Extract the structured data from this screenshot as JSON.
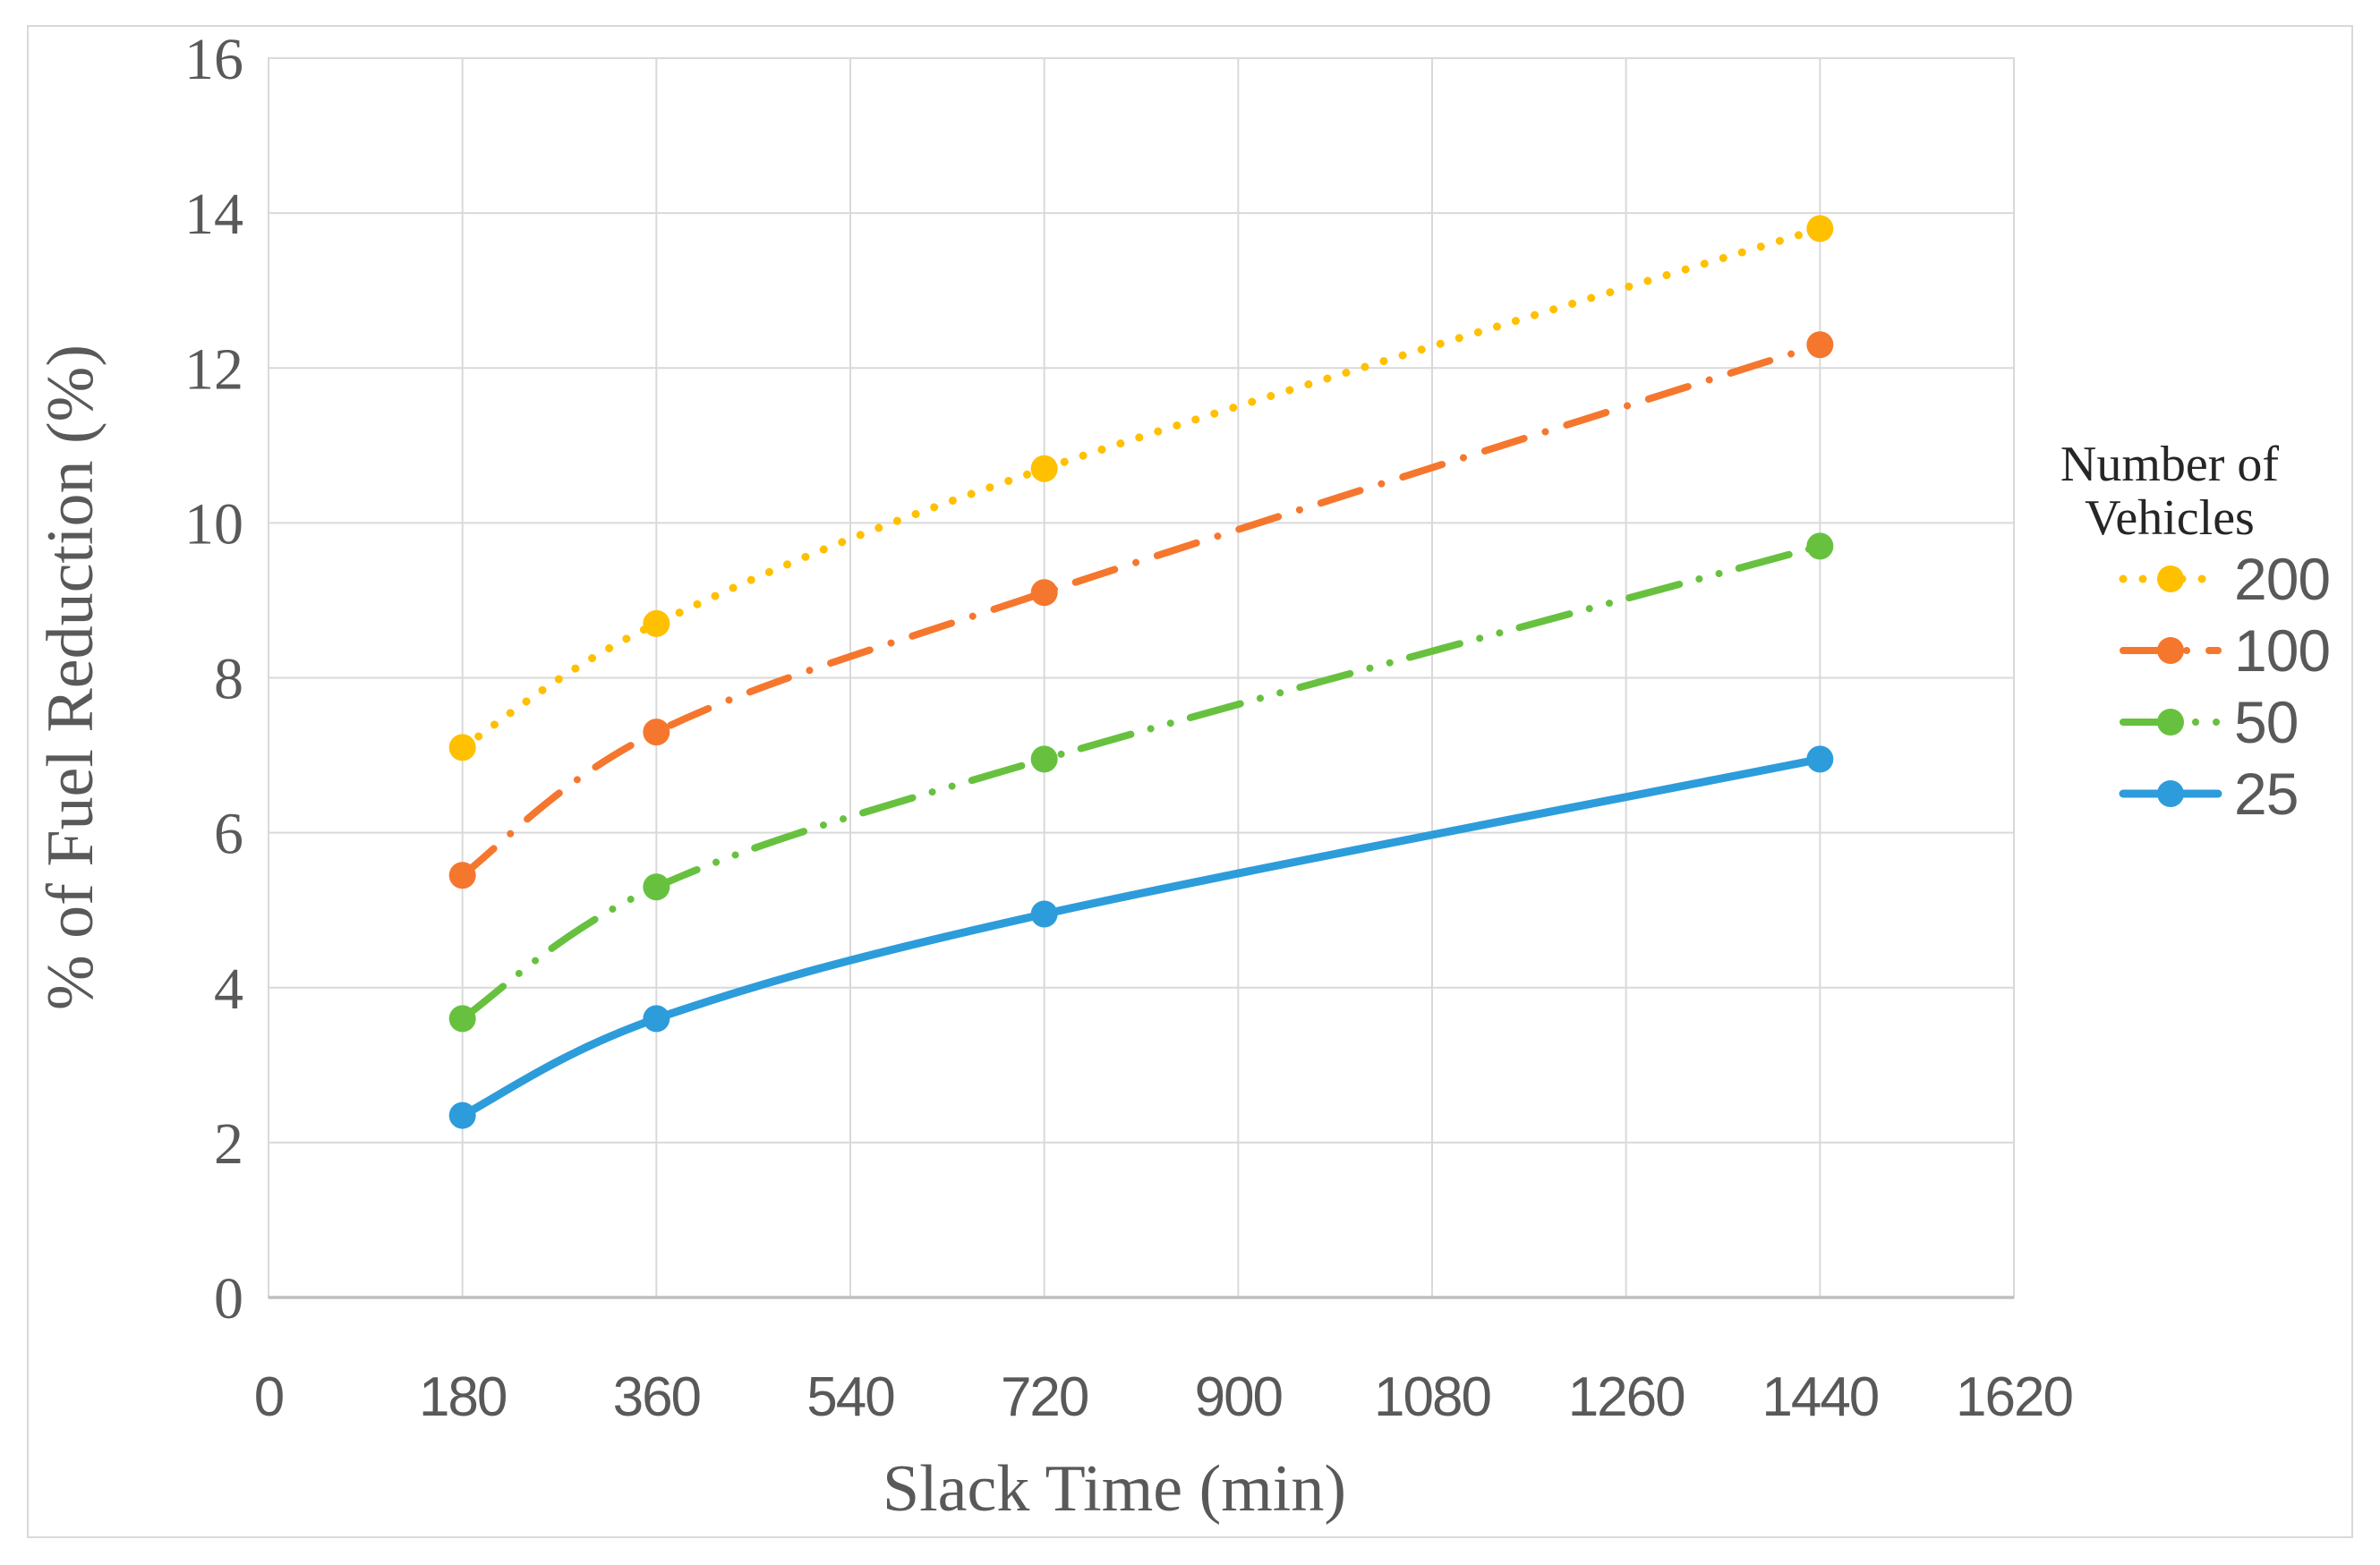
{
  "page": {
    "background": "#FFFFFF",
    "frame_border_color": "#D9D9D9"
  },
  "chart_data": {
    "type": "line",
    "title": "",
    "xlabel": "Slack Time (min)",
    "ylabel": "% of Fuel Reduction (%)",
    "x": [
      180,
      360,
      720,
      1440
    ],
    "xlim": [
      0,
      1620
    ],
    "ylim": [
      0,
      16
    ],
    "x_ticks": [
      0,
      180,
      360,
      540,
      720,
      900,
      1080,
      1260,
      1440,
      1620
    ],
    "y_ticks": [
      0,
      2,
      4,
      6,
      8,
      10,
      12,
      14,
      16
    ],
    "grid": true,
    "smoothed_lines": true,
    "legend": {
      "position": "right",
      "title_lines": [
        "Number of",
        "Vehicles"
      ],
      "entries": [
        "200",
        "100",
        "50",
        "25"
      ]
    },
    "series": [
      {
        "name": "200",
        "color": "#FFC000",
        "line_style": "dotted",
        "marker": "circle",
        "values": [
          7.1,
          8.7,
          10.7,
          13.8
        ]
      },
      {
        "name": "100",
        "color": "#F5772E",
        "line_style": "dash-dot",
        "marker": "circle",
        "values": [
          5.45,
          7.3,
          9.1,
          12.3
        ]
      },
      {
        "name": "50",
        "color": "#67C13F",
        "line_style": "dash-dot-dot",
        "marker": "circle",
        "values": [
          3.6,
          5.3,
          6.95,
          9.7
        ]
      },
      {
        "name": "25",
        "color": "#2D9CDB",
        "line_style": "solid",
        "marker": "circle",
        "values": [
          2.35,
          3.6,
          4.95,
          6.95
        ]
      }
    ],
    "styles": {
      "grid_color": "#D9D9D9",
      "plot_border_color": "#D9D9D9",
      "axis_line_color": "#BFBFBF",
      "tick_label_color": "#595959",
      "axis_title_color": "#595959",
      "legend_title_color": "#262626",
      "legend_label_color": "#595959"
    }
  }
}
